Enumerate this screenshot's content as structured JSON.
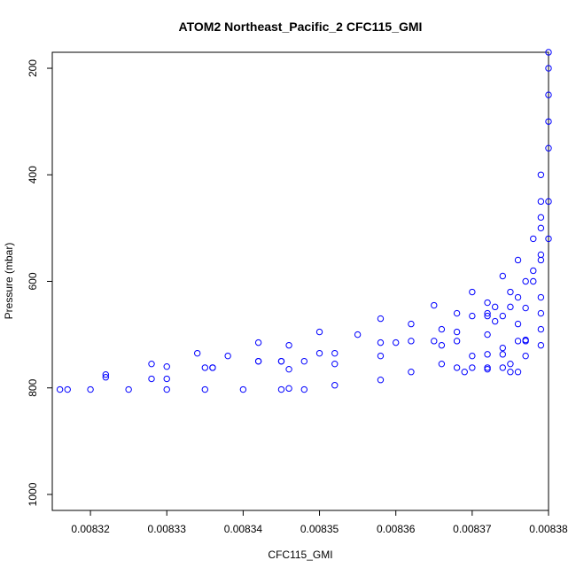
{
  "chart_data": {
    "type": "scatter",
    "title": "ATOM2 Northeast_Pacific_2 CFC115_GMI",
    "xlabel": "CFC115_GMI",
    "ylabel": "Pressure (mbar)",
    "xlim": [
      0.008315,
      0.00838
    ],
    "ylim": [
      1030,
      170
    ],
    "y_reversed": true,
    "grid": false,
    "legend": "none",
    "marker": "open-circle",
    "color": "#0000ff",
    "x_ticks": [
      0.00832,
      0.00833,
      0.00834,
      0.00835,
      0.00836,
      0.00837,
      0.00838
    ],
    "x_tick_labels": [
      "0.00832",
      "0.00833",
      "0.00834",
      "0.00835",
      "0.00836",
      "0.00837",
      "0.00838"
    ],
    "y_ticks": [
      200,
      400,
      600,
      800,
      1000
    ],
    "y_tick_labels": [
      "200",
      "400",
      "600",
      "800",
      "1000"
    ],
    "series": [
      {
        "values": [
          [
            0.00838,
            170
          ],
          [
            0.00838,
            200
          ],
          [
            0.00838,
            250
          ],
          [
            0.00838,
            300
          ],
          [
            0.00838,
            350
          ],
          [
            0.008379,
            400
          ],
          [
            0.008379,
            450
          ],
          [
            0.008379,
            500
          ],
          [
            0.008379,
            550
          ],
          [
            0.008378,
            580
          ],
          [
            0.008377,
            600
          ],
          [
            0.008375,
            620
          ],
          [
            0.008372,
            640
          ],
          [
            0.008368,
            660
          ],
          [
            0.008362,
            680
          ],
          [
            0.008355,
            700
          ],
          [
            0.008346,
            720
          ],
          [
            0.008338,
            740
          ],
          [
            0.00833,
            760
          ],
          [
            0.008322,
            780
          ],
          [
            0.008316,
            803
          ],
          [
            0.00838,
            450
          ],
          [
            0.008379,
            480
          ],
          [
            0.008378,
            520
          ],
          [
            0.008376,
            560
          ],
          [
            0.008374,
            590
          ],
          [
            0.00837,
            620
          ],
          [
            0.008365,
            645
          ],
          [
            0.008358,
            670
          ],
          [
            0.00835,
            695
          ],
          [
            0.008342,
            715
          ],
          [
            0.008334,
            735
          ],
          [
            0.008328,
            755
          ],
          [
            0.008322,
            775
          ],
          [
            0.00838,
            520
          ],
          [
            0.008379,
            560
          ],
          [
            0.008378,
            600
          ],
          [
            0.008376,
            630
          ],
          [
            0.008372,
            660
          ],
          [
            0.008366,
            690
          ],
          [
            0.008358,
            715
          ],
          [
            0.00835,
            735
          ],
          [
            0.008342,
            750
          ],
          [
            0.008336,
            762
          ],
          [
            0.008379,
            630
          ],
          [
            0.008377,
            650
          ],
          [
            0.008373,
            675
          ],
          [
            0.008368,
            695
          ],
          [
            0.00836,
            715
          ],
          [
            0.008352,
            735
          ],
          [
            0.008345,
            750
          ],
          [
            0.008379,
            660
          ],
          [
            0.008376,
            680
          ],
          [
            0.008372,
            700
          ],
          [
            0.008366,
            720
          ],
          [
            0.008358,
            740
          ],
          [
            0.008352,
            755
          ],
          [
            0.008346,
            765
          ],
          [
            0.008379,
            690
          ],
          [
            0.008377,
            710
          ],
          [
            0.008374,
            725
          ],
          [
            0.00837,
            740
          ],
          [
            0.008366,
            755
          ],
          [
            0.008362,
            770
          ],
          [
            0.008358,
            785
          ],
          [
            0.008352,
            795
          ],
          [
            0.008346,
            801
          ],
          [
            0.008379,
            720
          ],
          [
            0.008377,
            740
          ],
          [
            0.008375,
            755
          ],
          [
            0.008372,
            765
          ],
          [
            0.008369,
            770
          ],
          [
            0.008317,
            803
          ],
          [
            0.00832,
            803
          ],
          [
            0.008325,
            803
          ],
          [
            0.00833,
            803
          ],
          [
            0.008335,
            803
          ],
          [
            0.00834,
            803
          ],
          [
            0.008345,
            803
          ],
          [
            0.008348,
            803
          ],
          [
            0.008328,
            783
          ],
          [
            0.00833,
            783
          ],
          [
            0.008335,
            762
          ],
          [
            0.008336,
            762
          ],
          [
            0.008342,
            750
          ],
          [
            0.008345,
            750
          ],
          [
            0.008348,
            750
          ],
          [
            0.008362,
            712
          ],
          [
            0.008365,
            712
          ],
          [
            0.008368,
            712
          ],
          [
            0.008368,
            762
          ],
          [
            0.00837,
            762
          ],
          [
            0.008372,
            762
          ],
          [
            0.008374,
            762
          ],
          [
            0.008375,
            770
          ],
          [
            0.008376,
            770
          ],
          [
            0.008372,
            737
          ],
          [
            0.008374,
            737
          ],
          [
            0.008376,
            712
          ],
          [
            0.008377,
            712
          ],
          [
            0.008373,
            648
          ],
          [
            0.008375,
            648
          ],
          [
            0.00837,
            665
          ],
          [
            0.008372,
            665
          ],
          [
            0.008374,
            665
          ]
        ]
      }
    ]
  }
}
